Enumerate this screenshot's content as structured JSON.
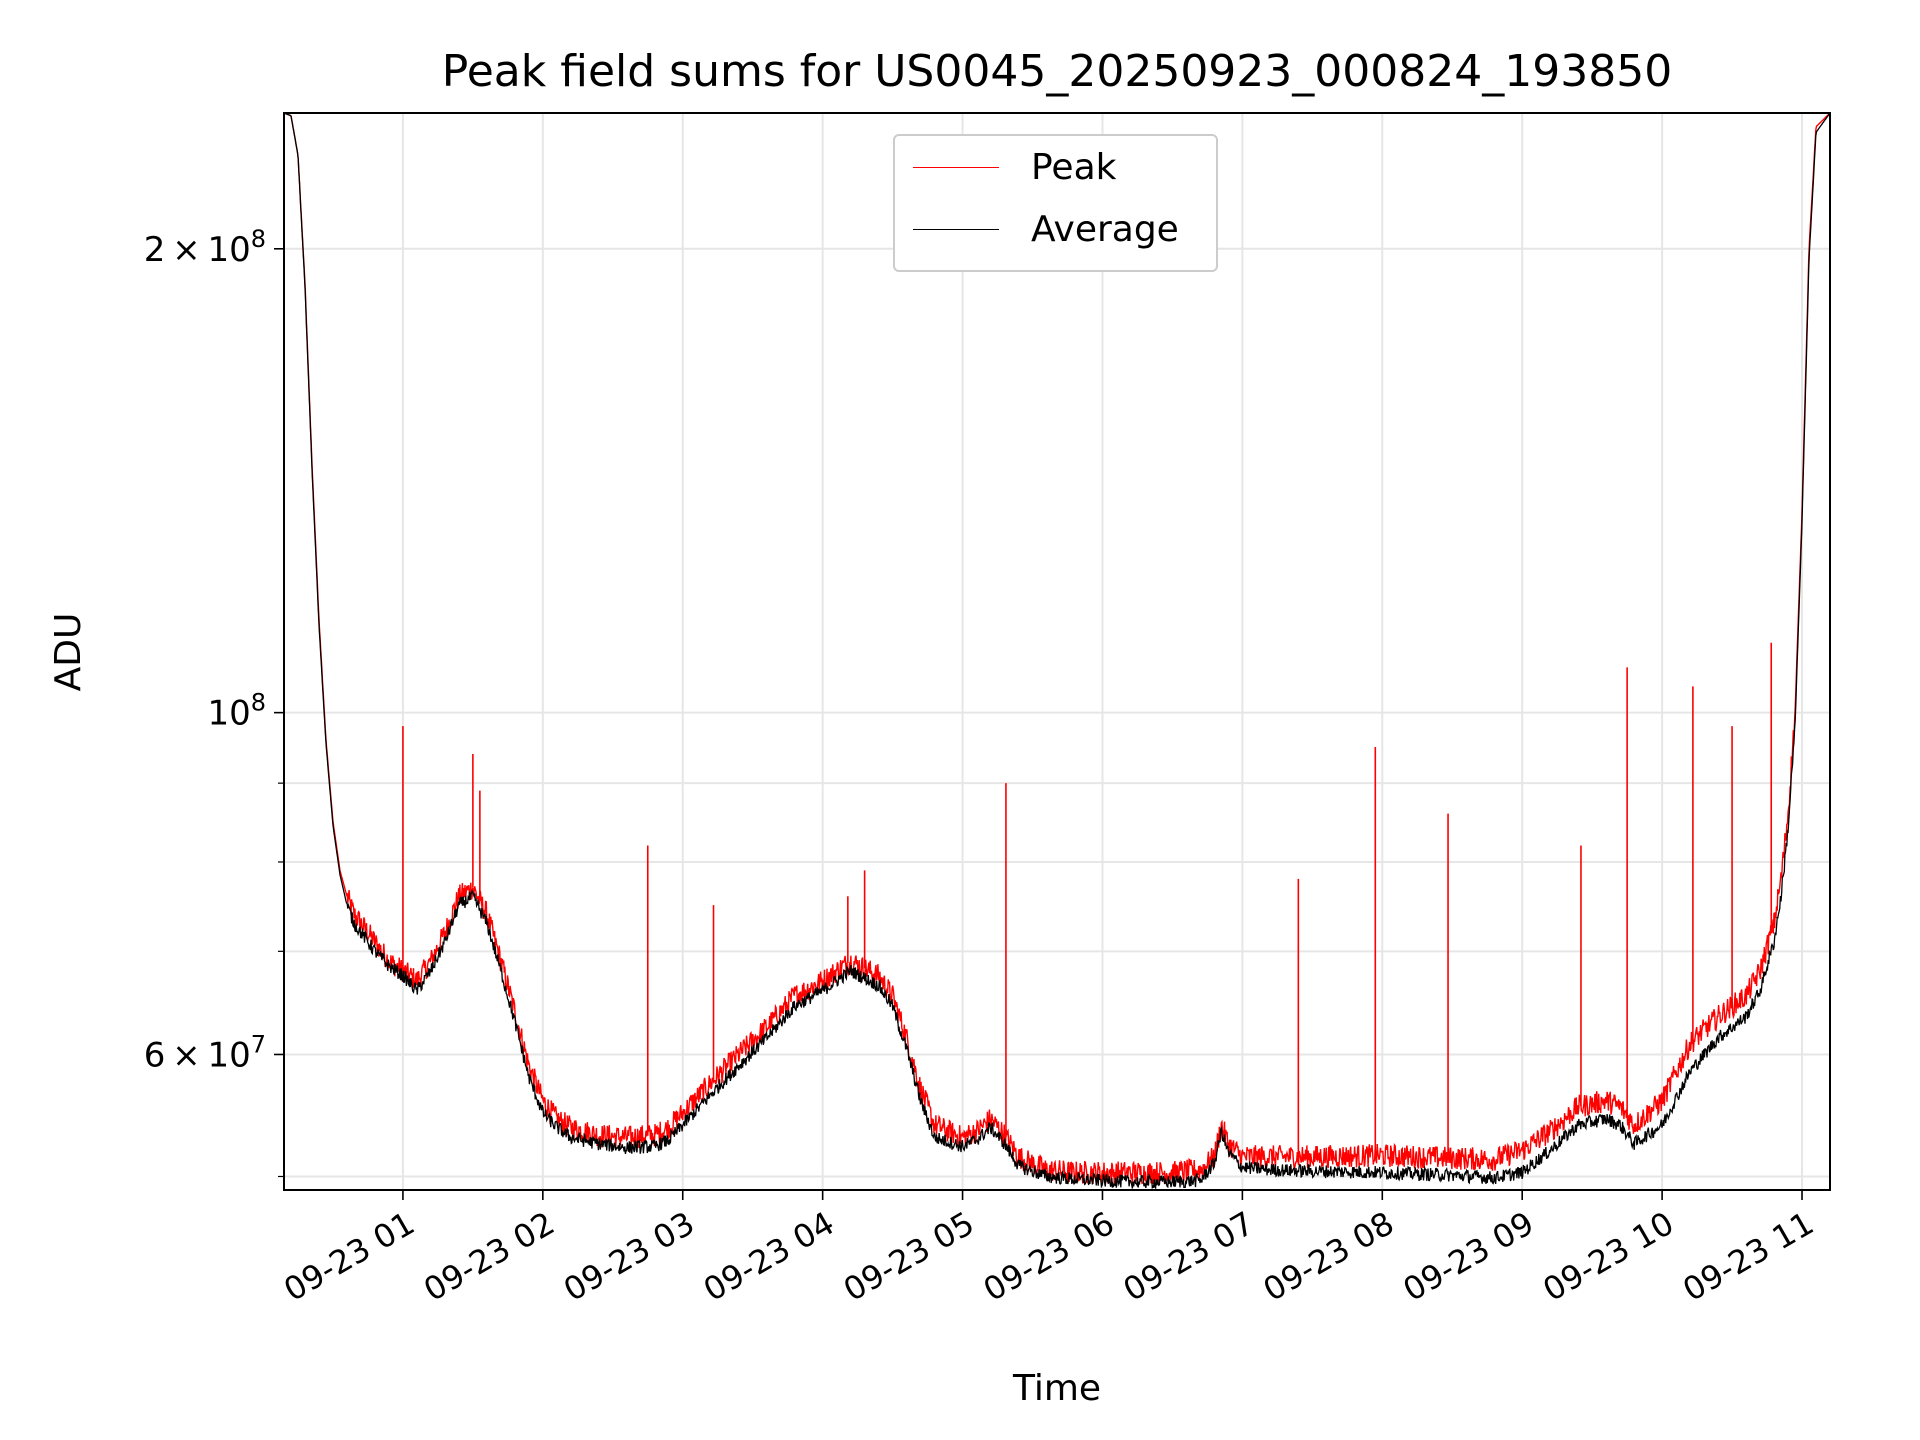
{
  "chart_data": {
    "type": "line",
    "title": "Peak field sums for US0045_20250923_000824_193850",
    "xlabel": "Time",
    "ylabel": "ADU",
    "yscale": "log",
    "ylim": [
      49000000,
      245000000
    ],
    "xlim": [
      0.15,
      11.2
    ],
    "grid": true,
    "legend_position": "top-center",
    "x_ticks": [
      {
        "value": 1,
        "label": "09-23 01"
      },
      {
        "value": 2,
        "label": "09-23 02"
      },
      {
        "value": 3,
        "label": "09-23 03"
      },
      {
        "value": 4,
        "label": "09-23 04"
      },
      {
        "value": 5,
        "label": "09-23 05"
      },
      {
        "value": 6,
        "label": "09-23 06"
      },
      {
        "value": 7,
        "label": "09-23 07"
      },
      {
        "value": 8,
        "label": "09-23 08"
      },
      {
        "value": 9,
        "label": "09-23 09"
      },
      {
        "value": 10,
        "label": "09-23 10"
      },
      {
        "value": 11,
        "label": "09-23 11"
      }
    ],
    "y_ticks_major": [
      {
        "value": 200000000,
        "mantissa": "2",
        "exponent": "8"
      },
      {
        "value": 100000000,
        "mantissa": "",
        "exponent": "8"
      },
      {
        "value": 60000000,
        "mantissa": "6",
        "exponent": "7"
      }
    ],
    "y_ticks_minor": [
      50000000,
      70000000,
      80000000,
      90000000
    ],
    "series": [
      {
        "name": "Peak",
        "color": "#ff0000",
        "x": [
          0.15,
          0.2,
          0.25,
          0.3,
          0.35,
          0.4,
          0.45,
          0.5,
          0.55,
          0.6,
          0.65,
          0.7,
          0.8,
          0.9,
          1.0,
          1.1,
          1.2,
          1.3,
          1.4,
          1.5,
          1.6,
          1.7,
          1.8,
          1.9,
          2.0,
          2.1,
          2.2,
          2.4,
          2.6,
          2.8,
          2.9,
          3.0,
          3.2,
          3.4,
          3.6,
          3.8,
          4.0,
          4.2,
          4.4,
          4.5,
          4.6,
          4.7,
          4.8,
          5.0,
          5.1,
          5.2,
          5.3,
          5.4,
          5.6,
          5.8,
          6.0,
          6.2,
          6.5,
          6.7,
          6.8,
          6.85,
          6.9,
          7.0,
          7.2,
          7.5,
          8.0,
          8.5,
          8.8,
          9.0,
          9.2,
          9.4,
          9.6,
          9.7,
          9.8,
          10.0,
          10.2,
          10.4,
          10.6,
          10.7,
          10.75,
          10.8,
          10.85,
          10.9,
          10.95,
          11.0,
          11.05,
          11.1,
          11.2
        ],
        "values": [
          245000000,
          244000000,
          230000000,
          190000000,
          145000000,
          115000000,
          96000000,
          85000000,
          79000000,
          76000000,
          74000000,
          73000000,
          71000000,
          69000000,
          68000000,
          67000000,
          69000000,
          72000000,
          76000000,
          77000000,
          74000000,
          69000000,
          64000000,
          59000000,
          56000000,
          54500000,
          53800000,
          53200000,
          53000000,
          53200000,
          53800000,
          55000000,
          57500000,
          60000000,
          62500000,
          65500000,
          67000000,
          69000000,
          67500000,
          65500000,
          61500000,
          57000000,
          54000000,
          53000000,
          53500000,
          54500000,
          53200000,
          51500000,
          50500000,
          50300000,
          50300000,
          50300000,
          50300000,
          50500000,
          51500000,
          54000000,
          52500000,
          51500000,
          51500000,
          51500000,
          51600000,
          51400000,
          51300000,
          52000000,
          53500000,
          55500000,
          56000000,
          55500000,
          54000000,
          56000000,
          61000000,
          63500000,
          65500000,
          68000000,
          70500000,
          73000000,
          78000000,
          86000000,
          100000000,
          135000000,
          200000000,
          240000000,
          245000000
        ]
      },
      {
        "name": "Average",
        "color": "#000000",
        "x": [
          0.15,
          0.2,
          0.25,
          0.3,
          0.35,
          0.4,
          0.45,
          0.5,
          0.55,
          0.6,
          0.65,
          0.7,
          0.8,
          0.9,
          1.0,
          1.1,
          1.2,
          1.3,
          1.4,
          1.5,
          1.6,
          1.7,
          1.8,
          1.9,
          2.0,
          2.1,
          2.2,
          2.4,
          2.6,
          2.8,
          2.9,
          3.0,
          3.2,
          3.4,
          3.6,
          3.8,
          4.0,
          4.2,
          4.4,
          4.5,
          4.6,
          4.7,
          4.8,
          5.0,
          5.1,
          5.2,
          5.3,
          5.4,
          5.6,
          5.8,
          6.0,
          6.2,
          6.5,
          6.7,
          6.8,
          6.85,
          6.9,
          7.0,
          7.2,
          7.5,
          8.0,
          8.5,
          8.8,
          9.0,
          9.2,
          9.4,
          9.6,
          9.7,
          9.8,
          10.0,
          10.2,
          10.4,
          10.6,
          10.7,
          10.75,
          10.8,
          10.85,
          10.9,
          10.95,
          11.0,
          11.05,
          11.1,
          11.2
        ],
        "values": [
          245000000,
          244000000,
          230000000,
          189000000,
          144000000,
          114000000,
          95500000,
          84500000,
          78500000,
          75000000,
          73000000,
          72000000,
          70000000,
          68500000,
          67500000,
          66000000,
          68000000,
          71000000,
          75000000,
          76000000,
          73000000,
          68000000,
          63000000,
          58000000,
          55000000,
          53800000,
          53000000,
          52500000,
          52200000,
          52300000,
          52800000,
          54000000,
          56500000,
          59000000,
          61500000,
          64500000,
          66000000,
          68000000,
          66500000,
          64500000,
          60500000,
          56000000,
          53000000,
          52300000,
          52800000,
          53800000,
          52500000,
          50800000,
          50000000,
          49800000,
          49700000,
          49600000,
          49600000,
          49700000,
          51000000,
          53500000,
          51800000,
          50700000,
          50500000,
          50400000,
          50300000,
          50100000,
          49900000,
          50300000,
          52000000,
          54000000,
          54500000,
          54000000,
          52500000,
          54000000,
          58500000,
          61500000,
          63500000,
          66000000,
          68500000,
          71000000,
          76000000,
          84000000,
          98000000,
          133000000,
          197000000,
          238000000,
          245000000
        ]
      }
    ],
    "spikes": [
      {
        "x": 1.0,
        "value": 98000000
      },
      {
        "x": 1.5,
        "value": 94000000
      },
      {
        "x": 1.55,
        "value": 89000000
      },
      {
        "x": 2.75,
        "value": 82000000
      },
      {
        "x": 3.22,
        "value": 75000000
      },
      {
        "x": 4.18,
        "value": 76000000
      },
      {
        "x": 4.3,
        "value": 79000000
      },
      {
        "x": 5.31,
        "value": 90000000
      },
      {
        "x": 7.4,
        "value": 78000000
      },
      {
        "x": 7.95,
        "value": 95000000
      },
      {
        "x": 8.47,
        "value": 86000000
      },
      {
        "x": 9.42,
        "value": 82000000
      },
      {
        "x": 9.75,
        "value": 107000000
      },
      {
        "x": 10.22,
        "value": 104000000
      },
      {
        "x": 10.5,
        "value": 98000000
      },
      {
        "x": 10.78,
        "value": 111000000
      }
    ],
    "legend": [
      {
        "label": "Peak",
        "color": "#ff0000"
      },
      {
        "label": "Average",
        "color": "#000000"
      }
    ]
  }
}
